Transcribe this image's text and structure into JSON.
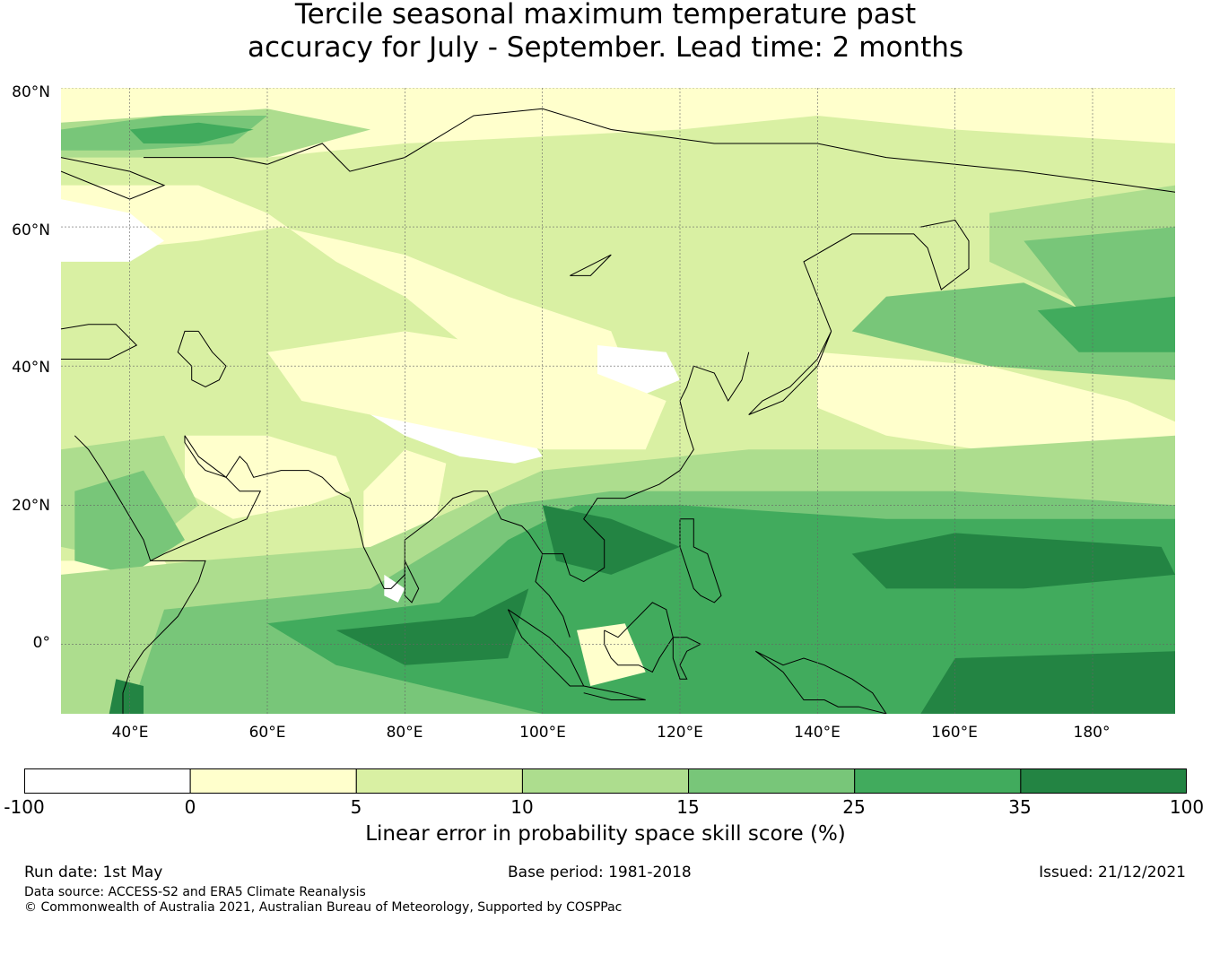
{
  "title": {
    "line1": "Tercile seasonal maximum temperature past",
    "line2": "accuracy for July - September. Lead time: 2 months"
  },
  "map": {
    "extent": {
      "lon_min": 30,
      "lon_max": 192,
      "lat_min": -10,
      "lat_max": 80
    },
    "lat_ticks": [
      "80°N",
      "60°N",
      "40°N",
      "20°N",
      "0°"
    ],
    "lat_tick_values": [
      80,
      60,
      40,
      20,
      0
    ],
    "lon_ticks": [
      "40°E",
      "60°E",
      "80°E",
      "100°E",
      "120°E",
      "140°E",
      "160°E",
      "180°"
    ],
    "lon_tick_values": [
      40,
      60,
      80,
      100,
      120,
      140,
      160,
      180
    ],
    "colors": {
      "lt0": "#ffffff",
      "0-5": "#ffffcc",
      "5-10": "#d9f0a3",
      "10-15": "#addd8e",
      "15-25": "#78c679",
      "25-35": "#41ab5d",
      "35-100": "#238443",
      "coast": "#000000",
      "grid": "#666666"
    }
  },
  "colorbar": {
    "ticks": [
      "-100",
      "0",
      "5",
      "10",
      "15",
      "25",
      "35",
      "100"
    ],
    "colors": [
      "#ffffff",
      "#ffffcc",
      "#d9f0a3",
      "#addd8e",
      "#78c679",
      "#41ab5d",
      "#238443"
    ],
    "label": "Linear error in probability space skill score (%)"
  },
  "footer": {
    "run_date": "Run date: 1st May",
    "base_period": "Base period: 1981-2018",
    "issued": "Issued: 21/12/2021",
    "data_source": "Data source: ACCESS-S2 and ERA5 Climate Reanalysis",
    "copyright": "© Commonwealth of Australia 2021, Australian Bureau of Meteorology, Supported by COSPPac"
  }
}
